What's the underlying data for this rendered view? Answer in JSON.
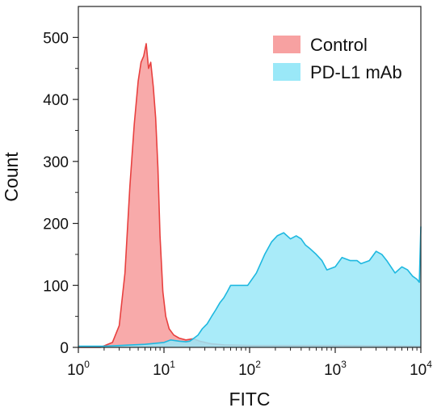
{
  "chart_data": {
    "type": "area",
    "xlabel": "FITC",
    "ylabel": "Count",
    "x_scale": "log",
    "xlim": [
      1,
      10000
    ],
    "ylim": [
      0,
      550
    ],
    "x_ticks": [
      {
        "value": 1,
        "base": "10",
        "exp": "0"
      },
      {
        "value": 10,
        "base": "10",
        "exp": "1"
      },
      {
        "value": 100,
        "base": "10",
        "exp": "2"
      },
      {
        "value": 1000,
        "base": "10",
        "exp": "3"
      },
      {
        "value": 10000,
        "base": "10",
        "exp": "4"
      }
    ],
    "y_ticks": [
      0,
      100,
      200,
      300,
      400,
      500
    ],
    "grid": false,
    "legend_position": "top-right",
    "series": [
      {
        "name": "Control",
        "fill_color": "#f7a1a1",
        "line_color": "#e8403f",
        "x": [
          1,
          1.8,
          2.5,
          3,
          3.5,
          4,
          4.5,
          5,
          5.4,
          5.8,
          6.2,
          6.6,
          7,
          7.5,
          8,
          8.5,
          9,
          9.7,
          10.5,
          11.5,
          13,
          15,
          18,
          22,
          26,
          35,
          50,
          100,
          1000,
          10000
        ],
        "y": [
          0,
          0,
          8,
          35,
          120,
          260,
          360,
          430,
          460,
          470,
          490,
          450,
          460,
          420,
          370,
          290,
          180,
          90,
          50,
          30,
          20,
          15,
          12,
          14,
          10,
          6,
          4,
          3,
          3,
          2
        ]
      },
      {
        "name": "PD-L1  mAb",
        "fill_color": "#9ae8f8",
        "line_color": "#1eb8e0",
        "x": [
          1,
          2,
          3,
          6,
          10,
          12,
          15,
          18,
          20,
          22,
          25,
          28,
          32,
          36,
          40,
          45,
          50,
          55,
          60,
          70,
          80,
          95,
          120,
          150,
          180,
          210,
          250,
          300,
          350,
          400,
          450,
          500,
          600,
          700,
          800,
          1000,
          1200,
          1500,
          1800,
          2000,
          2500,
          3000,
          3500,
          4000,
          5000,
          6000,
          7000,
          8000,
          9000,
          9600,
          10000
        ],
        "y": [
          2,
          2,
          3,
          5,
          8,
          12,
          10,
          9,
          10,
          14,
          20,
          30,
          38,
          50,
          60,
          72,
          80,
          90,
          100,
          100,
          100,
          100,
          120,
          150,
          170,
          180,
          185,
          175,
          180,
          175,
          165,
          160,
          150,
          140,
          125,
          130,
          145,
          140,
          140,
          135,
          140,
          155,
          150,
          140,
          120,
          130,
          125,
          115,
          110,
          105,
          195
        ]
      }
    ]
  }
}
